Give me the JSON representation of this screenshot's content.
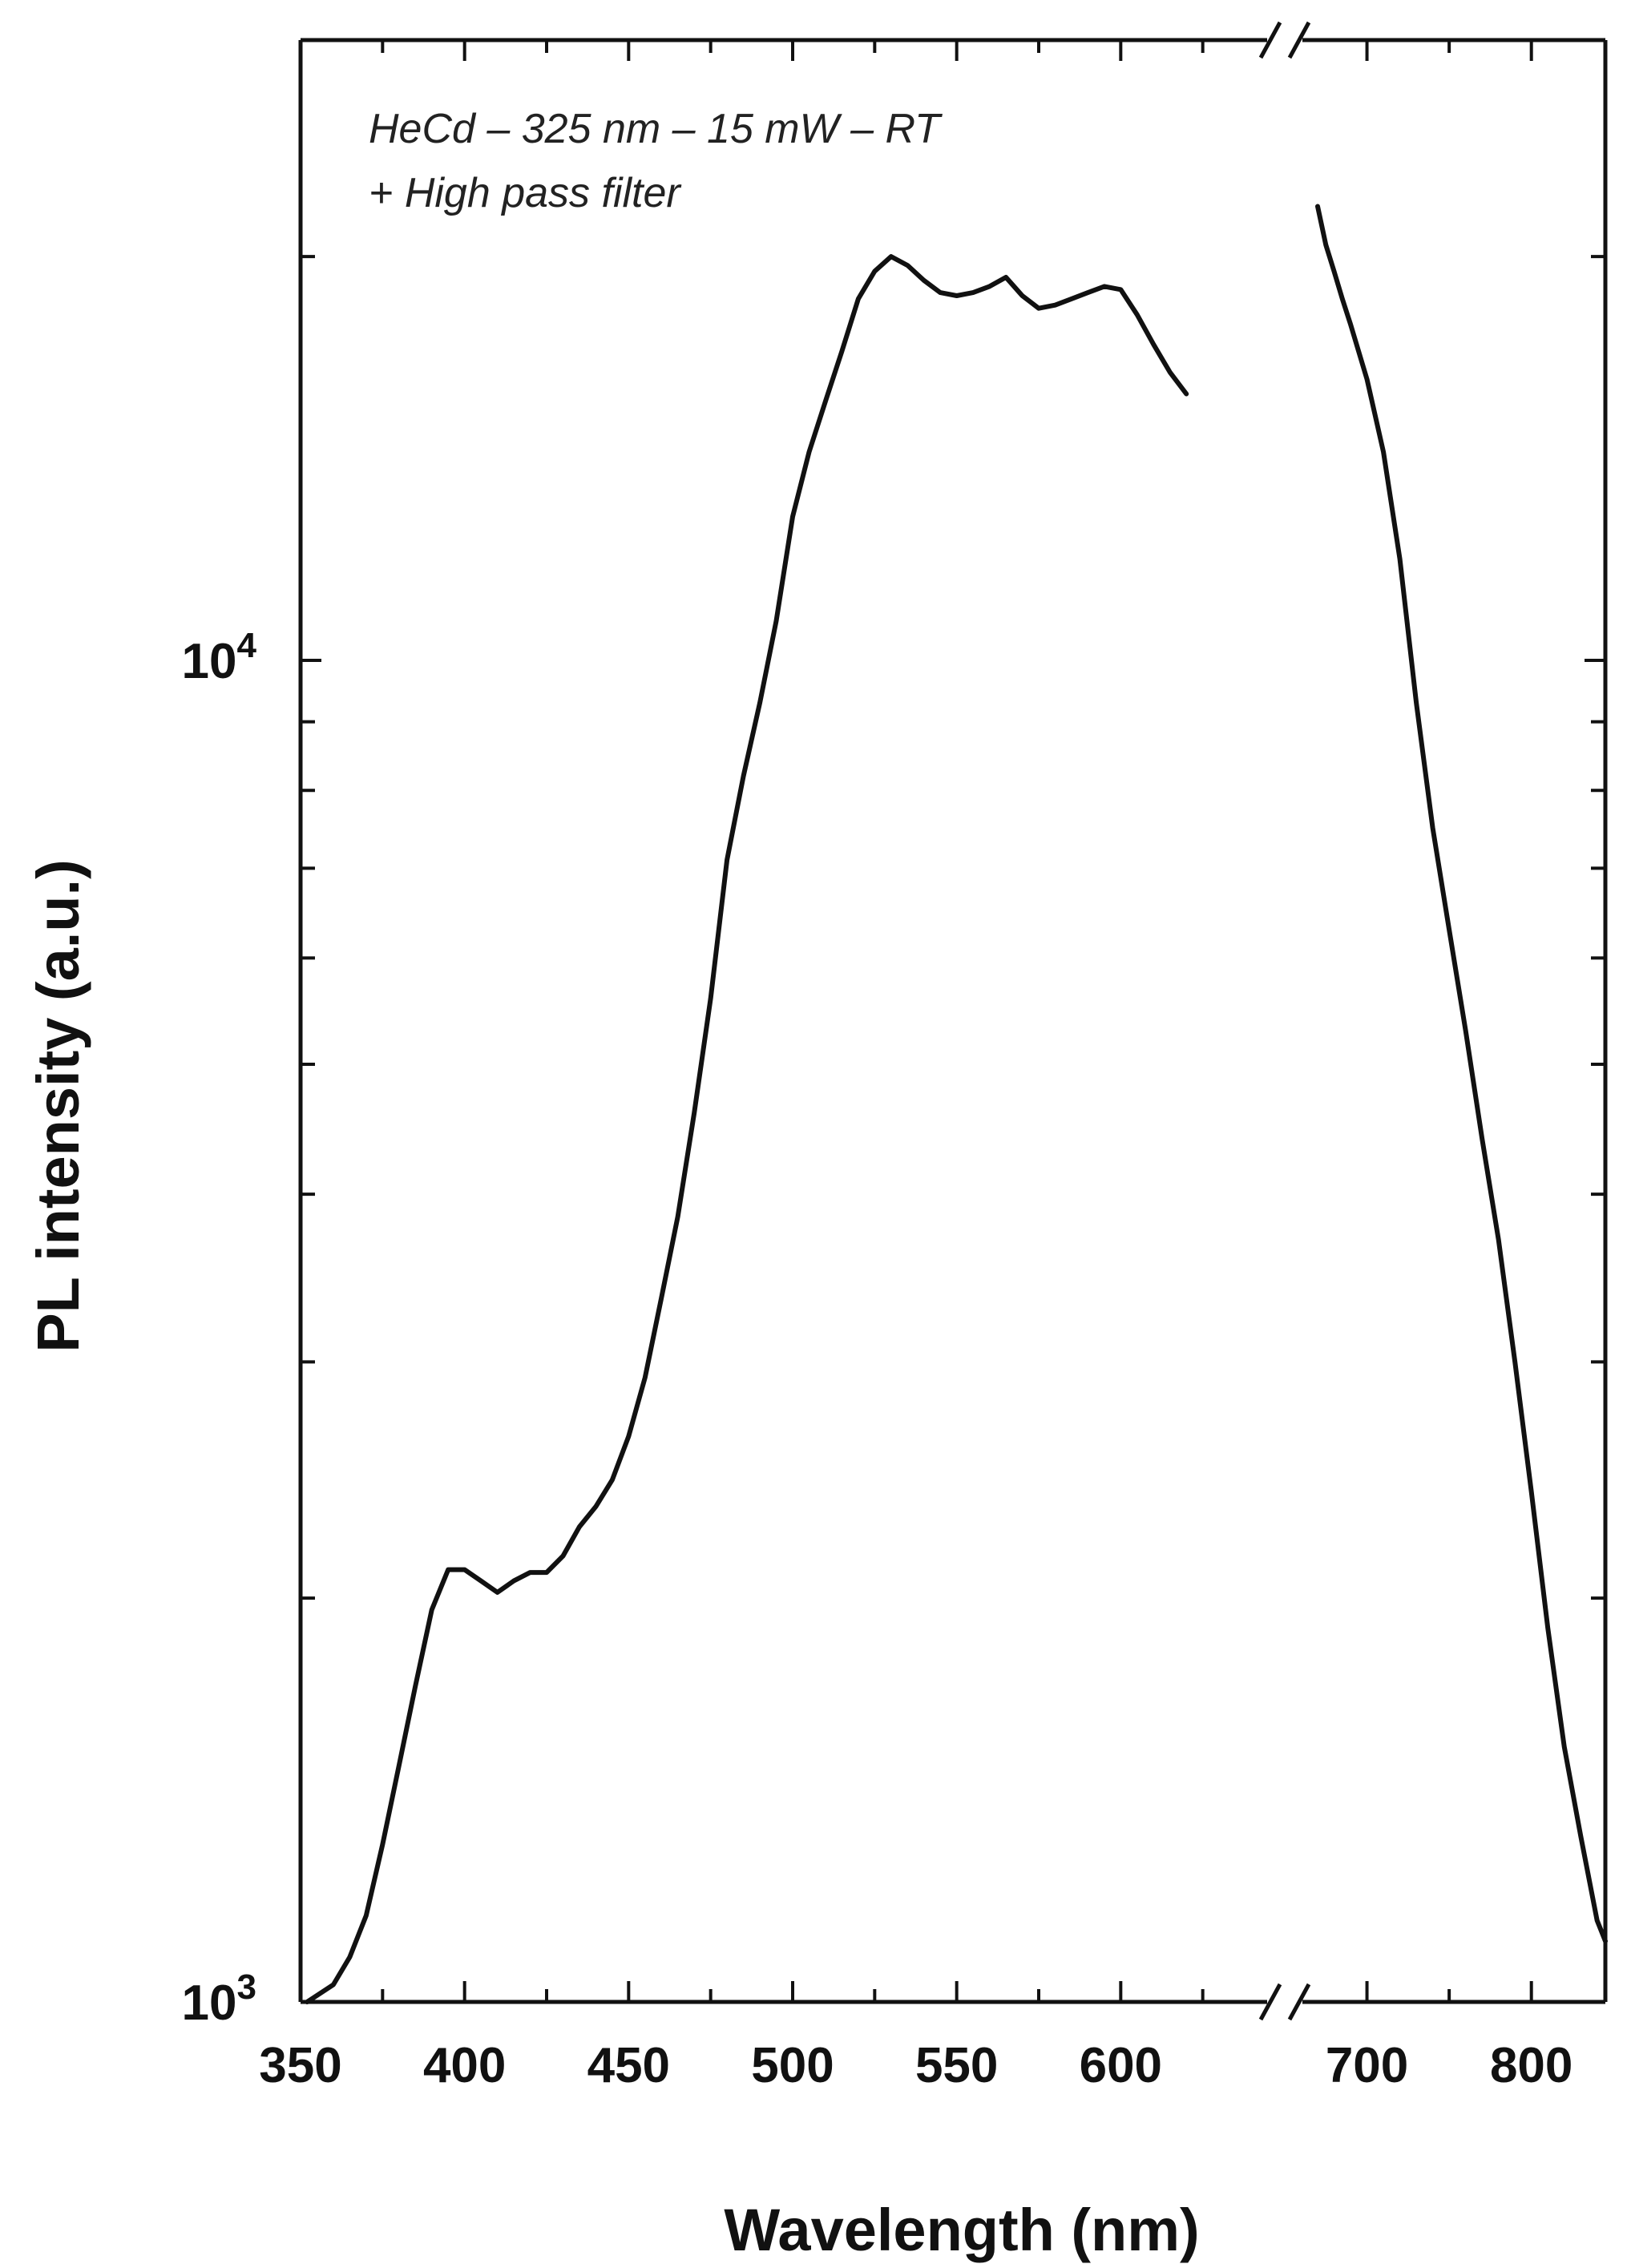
{
  "chart_data": {
    "type": "line",
    "xlabel": "Wavelength (nm)",
    "ylabel": "PL intensity (a.u.)",
    "y_scale": "log",
    "ylim": [
      1000,
      29000
    ],
    "xlim_segments": [
      [
        350,
        650
      ],
      [
        650,
        845
      ]
    ],
    "axis_break_marker": "//",
    "x_tick_labels": [
      "350",
      "400",
      "450",
      "500",
      "550",
      "600",
      "700",
      "800"
    ],
    "y_tick_labels": [
      {
        "base": "10",
        "exp": "4"
      },
      {
        "base": "10",
        "exp": "3"
      }
    ],
    "annotations": [
      "HeCd – 325 nm – 15 mW – RT",
      "+ High pass filter"
    ],
    "line_color": "#111111",
    "series": [
      {
        "segment": "left",
        "x": [
          352,
          360,
          365,
          370,
          375,
          380,
          385,
          390,
          395,
          400,
          405,
          410,
          415,
          420,
          425,
          430,
          435,
          440,
          445,
          450,
          455,
          460,
          465,
          470,
          475,
          480,
          485,
          490,
          495,
          500,
          505,
          510,
          515,
          520,
          525,
          530,
          535,
          540,
          545,
          550,
          555,
          560,
          565,
          570,
          575,
          580,
          585,
          590,
          595,
          600,
          605,
          610,
          615,
          620
        ],
        "y": [
          1000,
          1030,
          1080,
          1160,
          1310,
          1500,
          1720,
          1960,
          2100,
          2100,
          2060,
          2020,
          2060,
          2090,
          2090,
          2150,
          2260,
          2340,
          2450,
          2640,
          2920,
          3350,
          3850,
          4600,
          5600,
          7100,
          8200,
          9300,
          10700,
          12800,
          14300,
          15600,
          17000,
          18600,
          19500,
          20000,
          19700,
          19200,
          18800,
          18700,
          18800,
          19000,
          19300,
          18700,
          18300,
          18400,
          18600,
          18800,
          19000,
          18900,
          18100,
          17200,
          16400,
          15800
        ]
      },
      {
        "segment": "right",
        "x": [
          670,
          675,
          680,
          685,
          690,
          700,
          710,
          720,
          730,
          740,
          750,
          760,
          770,
          780,
          790,
          800,
          810,
          820,
          830,
          840,
          845
        ],
        "y": [
          21800,
          20400,
          19500,
          18600,
          17800,
          16200,
          14300,
          11900,
          9300,
          7500,
          6300,
          5300,
          4400,
          3700,
          3000,
          2400,
          1900,
          1550,
          1330,
          1150,
          1110
        ]
      }
    ]
  }
}
